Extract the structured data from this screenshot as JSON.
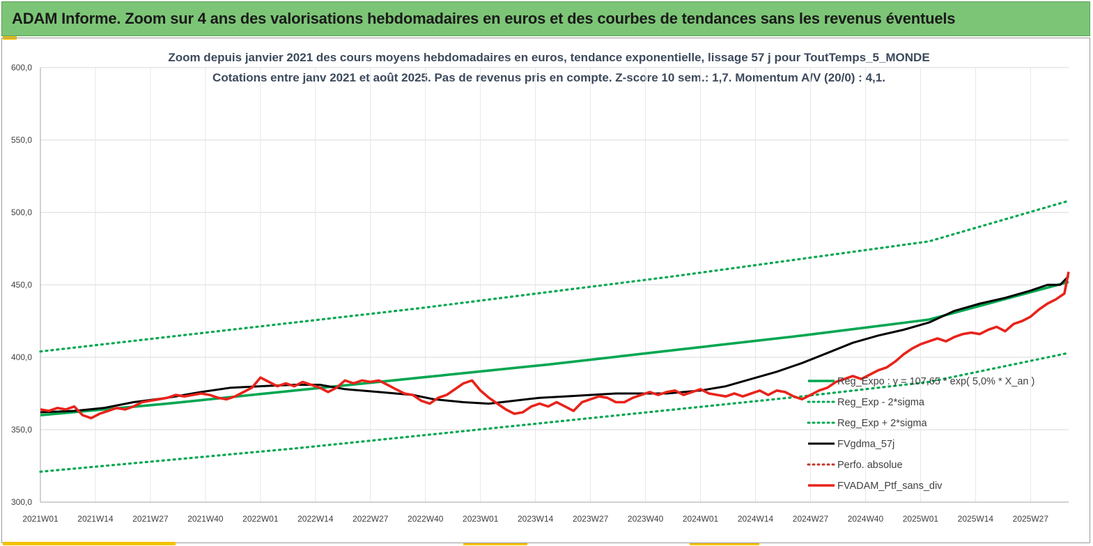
{
  "banner": {
    "title": "ADAM Informe. Zoom sur 4 ans des valorisations hebdomadaires en euros et des courbes de tendances sans les revenus éventuels",
    "color": "#7cc576"
  },
  "colors": {
    "accent": "#f2c200",
    "trend": "#00a650",
    "smoothed": "#000000",
    "portfolio": "#e8231a",
    "absolute": "#c0392b"
  },
  "chart_data": {
    "type": "line",
    "title": "Zoom depuis janvier 2021 des cours moyens hebdomadaires  en euros, tendance exponentielle, lissage 57 j pour ToutTemps_5_MONDE",
    "subtitle": "Cotations entre janv 2021 et août 2025. Pas de revenus pris en compte. Z-score 10 sem.: 1,7. Momentum A/V (20/0) : 4,1.",
    "x_ticks": [
      "2021W01",
      "2021W14",
      "2021W27",
      "2021W40",
      "2022W01",
      "2022W14",
      "2022W27",
      "2022W40",
      "2023W01",
      "2023W14",
      "2023W27",
      "2023W40",
      "2024W01",
      "2024W14",
      "2024W27",
      "2024W40",
      "2025W01",
      "2025W14",
      "2025W27"
    ],
    "y_ticks": [
      "600,0",
      "550,0",
      "500,0",
      "450,0",
      "400,0",
      "350,0",
      "300,0"
    ],
    "ylim": [
      300,
      600
    ],
    "x_range_weeks": [
      0,
      243
    ],
    "grid": true,
    "legend_position": "bottom-right",
    "series": [
      {
        "name": "Reg_Expo : y = 107,65 * exp( 5,0% *  X_an )",
        "style": "solid-thick",
        "color": "#00a650",
        "points": [
          [
            0,
            360
          ],
          [
            30,
            368
          ],
          [
            60,
            377
          ],
          [
            90,
            386
          ],
          [
            120,
            395
          ],
          [
            150,
            405
          ],
          [
            180,
            415
          ],
          [
            210,
            426
          ],
          [
            243,
            452
          ]
        ]
      },
      {
        "name": "Reg_Exp - 2*sigma",
        "style": "dotted",
        "color": "#00a650",
        "points": [
          [
            0,
            321
          ],
          [
            30,
            329
          ],
          [
            60,
            337
          ],
          [
            90,
            346
          ],
          [
            120,
            355
          ],
          [
            150,
            364
          ],
          [
            180,
            373
          ],
          [
            210,
            383
          ],
          [
            243,
            403
          ]
        ]
      },
      {
        "name": "Reg_Exp + 2*sigma",
        "style": "dotted",
        "color": "#00a650",
        "points": [
          [
            0,
            404
          ],
          [
            30,
            414
          ],
          [
            60,
            424
          ],
          [
            90,
            434
          ],
          [
            120,
            445
          ],
          [
            150,
            456
          ],
          [
            180,
            468
          ],
          [
            210,
            480
          ],
          [
            243,
            508
          ]
        ]
      },
      {
        "name": "FVgdma_57j",
        "style": "solid",
        "color": "#000000",
        "points": [
          [
            0,
            362
          ],
          [
            8,
            363
          ],
          [
            15,
            365
          ],
          [
            22,
            369
          ],
          [
            30,
            372
          ],
          [
            38,
            376
          ],
          [
            45,
            379
          ],
          [
            52,
            380
          ],
          [
            60,
            381
          ],
          [
            66,
            381
          ],
          [
            72,
            378
          ],
          [
            80,
            376
          ],
          [
            88,
            374
          ],
          [
            93,
            371
          ],
          [
            100,
            369
          ],
          [
            106,
            368
          ],
          [
            112,
            370
          ],
          [
            118,
            372
          ],
          [
            124,
            373
          ],
          [
            130,
            374
          ],
          [
            136,
            375
          ],
          [
            142,
            375
          ],
          [
            148,
            375
          ],
          [
            152,
            376
          ],
          [
            156,
            377
          ],
          [
            162,
            380
          ],
          [
            168,
            385
          ],
          [
            174,
            390
          ],
          [
            180,
            396
          ],
          [
            186,
            403
          ],
          [
            192,
            410
          ],
          [
            198,
            415
          ],
          [
            204,
            419
          ],
          [
            210,
            424
          ],
          [
            216,
            432
          ],
          [
            222,
            437
          ],
          [
            228,
            441
          ],
          [
            234,
            446
          ],
          [
            238,
            450
          ],
          [
            241,
            450
          ],
          [
            243,
            456
          ]
        ]
      },
      {
        "name": "Perfo. absolue",
        "style": "dotted",
        "color": "#c0392b",
        "points": []
      },
      {
        "name": "FVADAM_Ptf_sans_div",
        "style": "solid-thick",
        "color": "#e8231a",
        "points": [
          [
            0,
            364
          ],
          [
            2,
            363
          ],
          [
            4,
            365
          ],
          [
            6,
            364
          ],
          [
            8,
            366
          ],
          [
            10,
            360
          ],
          [
            12,
            358
          ],
          [
            14,
            361
          ],
          [
            16,
            363
          ],
          [
            18,
            365
          ],
          [
            20,
            364
          ],
          [
            22,
            366
          ],
          [
            24,
            369
          ],
          [
            26,
            370
          ],
          [
            28,
            371
          ],
          [
            30,
            372
          ],
          [
            32,
            374
          ],
          [
            34,
            373
          ],
          [
            36,
            374
          ],
          [
            38,
            375
          ],
          [
            40,
            374
          ],
          [
            42,
            372
          ],
          [
            44,
            371
          ],
          [
            46,
            373
          ],
          [
            48,
            376
          ],
          [
            50,
            379
          ],
          [
            52,
            386
          ],
          [
            54,
            383
          ],
          [
            56,
            380
          ],
          [
            58,
            382
          ],
          [
            60,
            380
          ],
          [
            62,
            383
          ],
          [
            64,
            381
          ],
          [
            66,
            379
          ],
          [
            68,
            376
          ],
          [
            70,
            379
          ],
          [
            72,
            384
          ],
          [
            74,
            382
          ],
          [
            76,
            384
          ],
          [
            78,
            383
          ],
          [
            80,
            384
          ],
          [
            82,
            381
          ],
          [
            84,
            378
          ],
          [
            86,
            375
          ],
          [
            88,
            374
          ],
          [
            90,
            370
          ],
          [
            92,
            368
          ],
          [
            94,
            372
          ],
          [
            96,
            374
          ],
          [
            98,
            378
          ],
          [
            100,
            382
          ],
          [
            102,
            384
          ],
          [
            104,
            377
          ],
          [
            106,
            372
          ],
          [
            108,
            368
          ],
          [
            110,
            364
          ],
          [
            112,
            361
          ],
          [
            114,
            362
          ],
          [
            116,
            366
          ],
          [
            118,
            368
          ],
          [
            120,
            366
          ],
          [
            122,
            369
          ],
          [
            124,
            366
          ],
          [
            126,
            363
          ],
          [
            128,
            369
          ],
          [
            130,
            371
          ],
          [
            132,
            373
          ],
          [
            134,
            372
          ],
          [
            136,
            369
          ],
          [
            138,
            369
          ],
          [
            140,
            372
          ],
          [
            142,
            374
          ],
          [
            144,
            376
          ],
          [
            146,
            374
          ],
          [
            148,
            376
          ],
          [
            150,
            377
          ],
          [
            152,
            374
          ],
          [
            154,
            376
          ],
          [
            156,
            378
          ],
          [
            158,
            375
          ],
          [
            160,
            374
          ],
          [
            162,
            373
          ],
          [
            164,
            375
          ],
          [
            166,
            373
          ],
          [
            168,
            375
          ],
          [
            170,
            377
          ],
          [
            172,
            374
          ],
          [
            174,
            377
          ],
          [
            176,
            376
          ],
          [
            178,
            373
          ],
          [
            180,
            371
          ],
          [
            182,
            374
          ],
          [
            184,
            377
          ],
          [
            186,
            379
          ],
          [
            188,
            383
          ],
          [
            190,
            385
          ],
          [
            192,
            387
          ],
          [
            194,
            385
          ],
          [
            196,
            388
          ],
          [
            198,
            391
          ],
          [
            200,
            393
          ],
          [
            202,
            397
          ],
          [
            204,
            402
          ],
          [
            206,
            406
          ],
          [
            208,
            409
          ],
          [
            210,
            411
          ],
          [
            212,
            413
          ],
          [
            214,
            411
          ],
          [
            216,
            414
          ],
          [
            218,
            416
          ],
          [
            220,
            417
          ],
          [
            222,
            416
          ],
          [
            224,
            419
          ],
          [
            226,
            421
          ],
          [
            228,
            418
          ],
          [
            230,
            423
          ],
          [
            232,
            425
          ],
          [
            234,
            428
          ],
          [
            236,
            433
          ],
          [
            238,
            437
          ],
          [
            240,
            440
          ],
          [
            242,
            444
          ],
          [
            243,
            459
          ]
        ]
      }
    ]
  }
}
